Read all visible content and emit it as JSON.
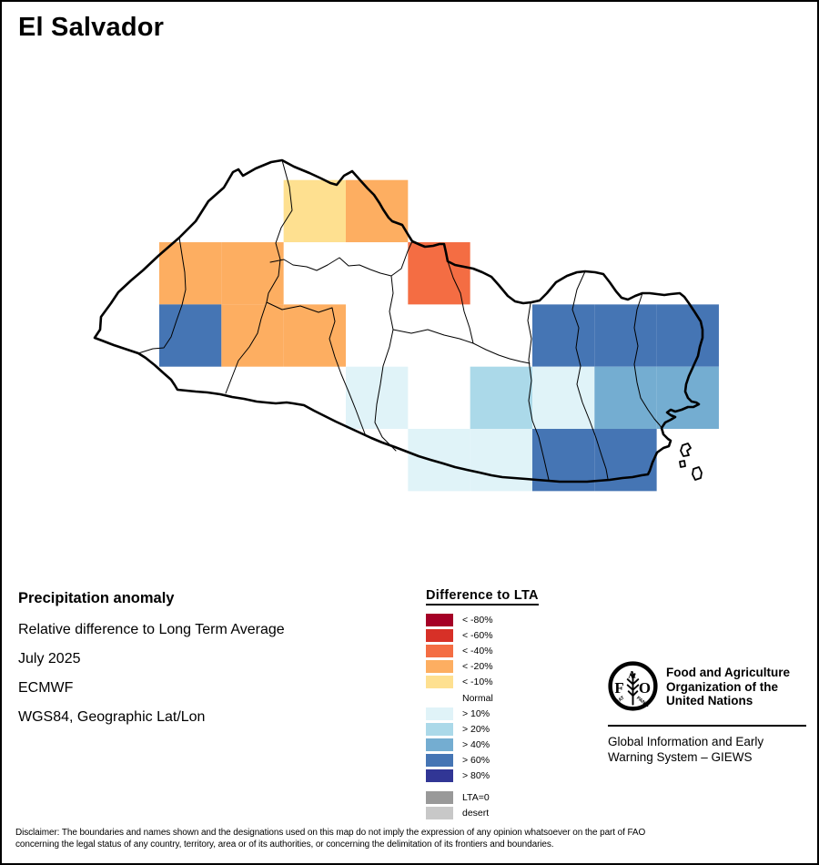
{
  "title": "El Salvador",
  "info": {
    "heading": "Precipitation anomaly",
    "line1": "Relative difference to Long Term Average",
    "line2": "July 2025",
    "line3": "ECMWF",
    "line4": "WGS84, Geographic Lat/Lon"
  },
  "legend": {
    "title": "Difference to LTA",
    "items": [
      {
        "label": "< -80%",
        "color": "#A50026"
      },
      {
        "label": "< -60%",
        "color": "#D73027"
      },
      {
        "label": "< -40%",
        "color": "#F46D43"
      },
      {
        "label": "< -20%",
        "color": "#FDAE61"
      },
      {
        "label": "< -10%",
        "color": "#FEE090"
      },
      {
        "label": "Normal",
        "color": "#FFFFFF"
      },
      {
        "label": "> 10%",
        "color": "#E0F3F8"
      },
      {
        "label": "> 20%",
        "color": "#ABD9E9"
      },
      {
        "label": "> 40%",
        "color": "#74ADD1"
      },
      {
        "label": "> 60%",
        "color": "#4575B4"
      },
      {
        "label": "> 80%",
        "color": "#313695"
      }
    ],
    "extra_items": [
      {
        "label": "LTA=0",
        "color": "#999999"
      },
      {
        "label": "desert",
        "color": "#C8C8C8"
      }
    ]
  },
  "map": {
    "country": "El Salvador",
    "cells": [
      {
        "col": 3,
        "row": 0,
        "value": "< -10%"
      },
      {
        "col": 4,
        "row": 0,
        "value": "< -20%"
      },
      {
        "col": 1,
        "row": 1,
        "value": "< -20%"
      },
      {
        "col": 2,
        "row": 1,
        "value": "< -20%"
      },
      {
        "col": 5,
        "row": 1,
        "value": "< -40%"
      },
      {
        "col": 1,
        "row": 2,
        "value": "> 60%"
      },
      {
        "col": 2,
        "row": 2,
        "value": "< -20%"
      },
      {
        "col": 3,
        "row": 2,
        "value": "< -20%"
      },
      {
        "col": 7,
        "row": 2,
        "value": "> 60%"
      },
      {
        "col": 8,
        "row": 2,
        "value": "> 60%"
      },
      {
        "col": 9,
        "row": 2,
        "value": "> 60%"
      },
      {
        "col": 4,
        "row": 3,
        "value": "> 10%"
      },
      {
        "col": 6,
        "row": 3,
        "value": "> 20%"
      },
      {
        "col": 7,
        "row": 3,
        "value": "> 10%"
      },
      {
        "col": 8,
        "row": 3,
        "value": "> 40%"
      },
      {
        "col": 9,
        "row": 3,
        "value": "> 40%"
      },
      {
        "col": 5,
        "row": 4,
        "value": "> 10%"
      },
      {
        "col": 6,
        "row": 4,
        "value": "> 10%"
      },
      {
        "col": 7,
        "row": 4,
        "value": "> 60%"
      },
      {
        "col": 8,
        "row": 4,
        "value": "> 60%"
      }
    ]
  },
  "fao": {
    "logo_letters": {
      "f": "F",
      "a": "A",
      "o": "O"
    },
    "logo_motto": {
      "left": "FIAT",
      "right": "PANIS"
    },
    "org_lines": [
      "Food and Agriculture",
      "Organization of the",
      "United Nations"
    ],
    "giews_lines": [
      "Global Information and Early",
      "Warning System – GIEWS"
    ]
  },
  "disclaimer": {
    "line1": "Disclaimer: The boundaries and names shown and the designations used on this map do not imply the expression of any opinion whatsoever on the part of FAO",
    "line2": "concerning the legal status of any country, territory, area or of its authorities, or concerning the delimitation of its frontiers and boundaries."
  }
}
